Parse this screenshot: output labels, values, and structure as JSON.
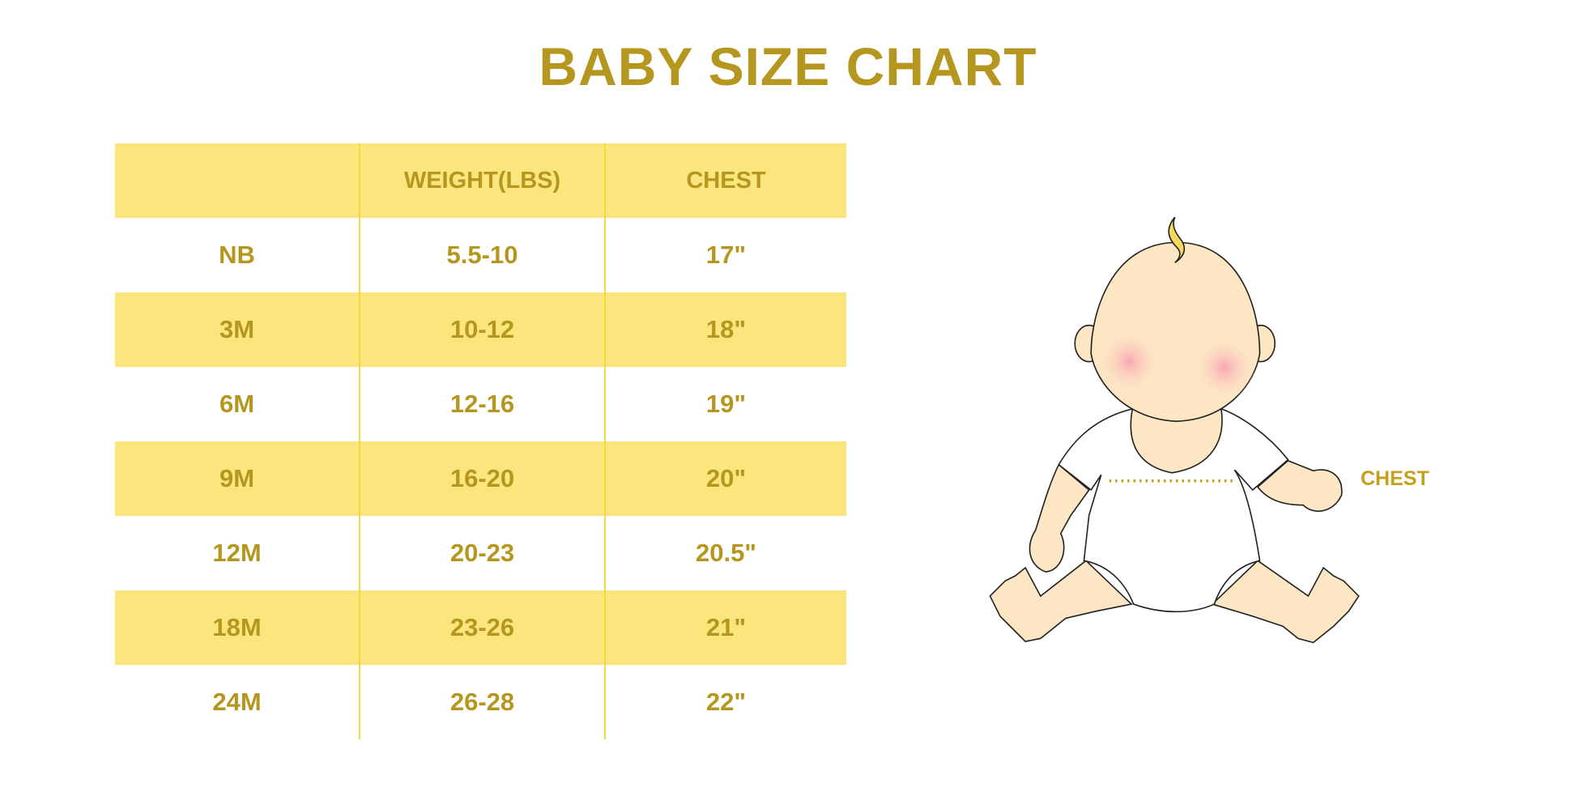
{
  "title": "BABY SIZE CHART",
  "table": {
    "headers": [
      "",
      "WEIGHT(LBS)",
      "CHEST"
    ],
    "rows": [
      [
        "NB",
        "5.5-10",
        "17\""
      ],
      [
        "3M",
        "10-12",
        "18\""
      ],
      [
        "6M",
        "12-16",
        "19\""
      ],
      [
        "9M",
        "16-20",
        "20\""
      ],
      [
        "12M",
        "20-23",
        "20.5\""
      ],
      [
        "18M",
        "23-26",
        "21\""
      ],
      [
        "24M",
        "26-28",
        "22\""
      ]
    ]
  },
  "illustration": {
    "chest_label": "CHEST"
  },
  "colors": {
    "text": "#b5961e",
    "band": "#fbe57d",
    "divider": "#f7d83c",
    "skin": "#fde6c4"
  }
}
